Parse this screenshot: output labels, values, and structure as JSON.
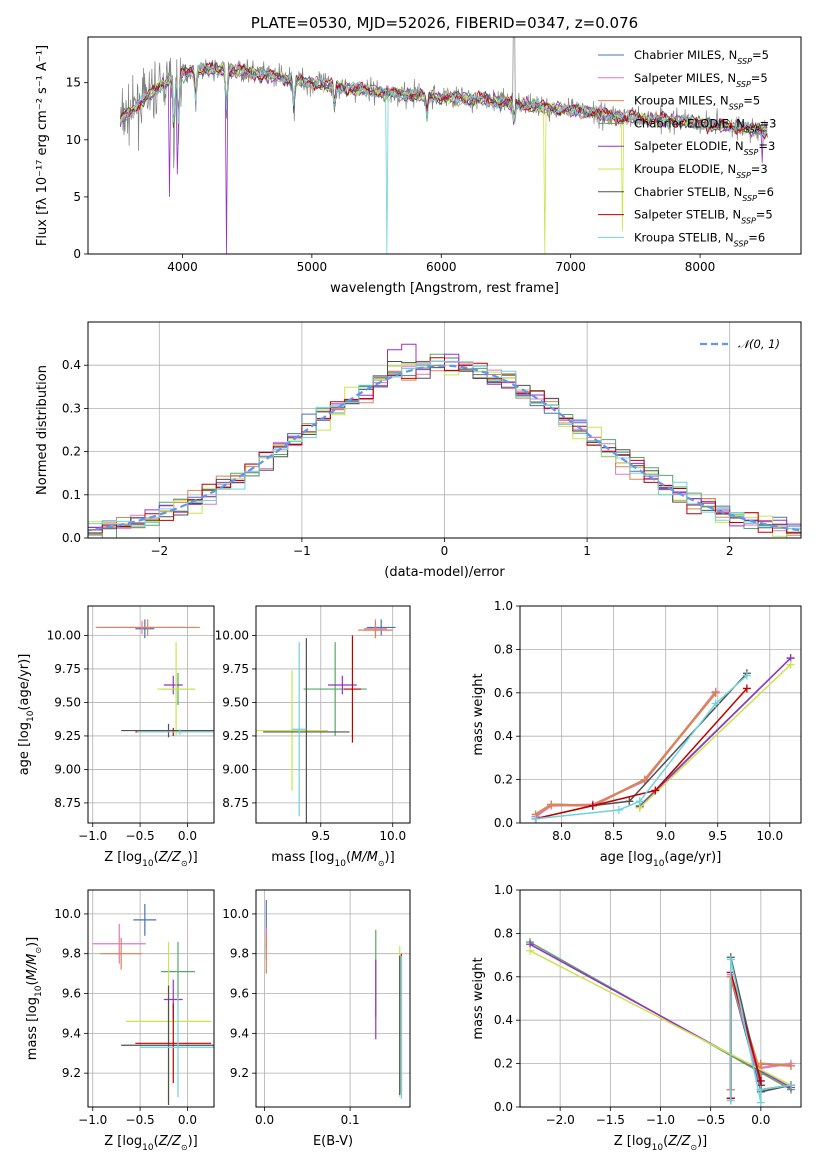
{
  "figure_title": "PLATE=0530, MJD=52026, FIBERID=0347, z=0.076",
  "model_names": [
    "Chabrier MILES",
    "Salpeter MILES",
    "Kroupa MILES",
    "Chabrier ELODIE",
    "Salpeter ELODIE",
    "Kroupa ELODIE",
    "Chabrier STELIB",
    "Salpeter STELIB",
    "Kroupa STELIB"
  ],
  "model_colors": [
    "#4c72b0",
    "#e377c2",
    "#dd8452",
    "#55a868",
    "#9b30c8",
    "#c8e64a",
    "#505050",
    "#c00000",
    "#6fd3dc"
  ],
  "chart_data": [
    {
      "id": "spectrum",
      "type": "line",
      "title": "PLATE=0530, MJD=52026, FIBERID=0347, z=0.076",
      "xlabel": "wavelength [Angstrom, rest frame]",
      "ylabel": "Flux [fλ 10⁻¹⁷ erg cm⁻² s⁻¹ A⁻¹]",
      "xlim": [
        3270,
        8780
      ],
      "ylim": [
        0,
        19
      ],
      "xticks": [
        4000,
        5000,
        6000,
        7000,
        8000
      ],
      "yticks": [
        0,
        5,
        10,
        15
      ],
      "grid": false,
      "legend": "top-right",
      "legend_entries": [
        "Chabrier MILES, N_SSP=5",
        "Salpeter MILES, N_SSP=5",
        "Kroupa MILES, N_SSP=5",
        "Chabrier ELODIE, N_SSP=3",
        "Salpeter ELODIE, N_SSP=3",
        "Kroupa ELODIE, N_SSP=3",
        "Chabrier STELIB, N_SSP=6",
        "Salpeter STELIB, N_SSP=5",
        "Kroupa STELIB, N_SSP=6"
      ],
      "data_color": "#808080",
      "continuum": {
        "x": [
          3500,
          3700,
          3900,
          4100,
          4400,
          4700,
          5000,
          5300,
          5600,
          5900,
          6200,
          6500,
          6800,
          7100,
          7400,
          7700,
          8000,
          8300,
          8500
        ],
        "y": [
          11.5,
          13.5,
          15.3,
          16.2,
          16.1,
          15.6,
          15.0,
          14.5,
          14.1,
          13.8,
          13.6,
          13.3,
          12.8,
          12.5,
          12.0,
          11.8,
          11.5,
          11.1,
          10.8
        ]
      }
    },
    {
      "id": "residuals",
      "type": "histogram",
      "xlabel": "(data-model)/error",
      "ylabel": "Normed distribution",
      "xlim": [
        -2.5,
        2.5
      ],
      "ylim": [
        0,
        0.5
      ],
      "xticks": [
        -2,
        -1,
        0,
        1,
        2
      ],
      "yticks": [
        0.0,
        0.1,
        0.2,
        0.3,
        0.4
      ],
      "grid": true,
      "legend": "top-right",
      "legend_entries": [
        "𝒩(0, 1)"
      ],
      "reference_curve": "gaussian mean 0 sigma 1"
    },
    {
      "id": "age_vs_Z",
      "type": "errorbar",
      "xlabel": "Z [log10(Z/Z⊙)]",
      "ylabel": "age  [log10(age/yr)]",
      "xlim": [
        -1.05,
        0.28
      ],
      "ylim": [
        8.6,
        10.22
      ],
      "xticks": [
        -1.0,
        -0.5,
        0.0
      ],
      "yticks": [
        8.75,
        9.0,
        9.25,
        9.5,
        9.75,
        10.0
      ],
      "grid": true,
      "series": [
        {
          "x": -0.45,
          "xerr": 0.1,
          "y": 10.05,
          "yerr": 0.07
        },
        {
          "x": -0.48,
          "xerr": 0.45,
          "y": 10.06,
          "yerr": 0.05
        },
        {
          "x": -0.42,
          "xerr": 0.55,
          "y": 10.06,
          "yerr": 0.06
        },
        {
          "x": -0.1,
          "xerr": 0.18,
          "y": 9.6,
          "yerr": 0.12
        },
        {
          "x": -0.15,
          "xerr": 0.1,
          "y": 9.63,
          "yerr": 0.07
        },
        {
          "x": -0.12,
          "xerr": 0.2,
          "y": 9.6,
          "yerr": 0.35
        },
        {
          "x": -0.2,
          "xerr": 0.5,
          "y": 9.29,
          "yerr": 0.05
        },
        {
          "x": -0.15,
          "xerr": 0.4,
          "y": 9.28,
          "yerr": 0.03
        },
        {
          "x": -0.08,
          "xerr": 0.45,
          "y": 9.28,
          "yerr": 0.02
        }
      ]
    },
    {
      "id": "age_vs_mass",
      "type": "errorbar",
      "xlabel": "mass [log10(M/M⊙)]",
      "ylabel": "",
      "xlim": [
        9.05,
        10.12
      ],
      "ylim": [
        8.6,
        10.22
      ],
      "xticks": [
        9.5,
        10.0
      ],
      "yticks": [
        8.75,
        9.0,
        9.25,
        9.5,
        9.75,
        10.0
      ],
      "grid": true,
      "series": [
        {
          "x": 9.92,
          "xerr": 0.1,
          "y": 10.06,
          "yerr": 0.06
        },
        {
          "x": 9.88,
          "xerr": 0.08,
          "y": 10.05,
          "yerr": 0.07
        },
        {
          "x": 9.88,
          "xerr": 0.12,
          "y": 10.04,
          "yerr": 0.06
        },
        {
          "x": 9.6,
          "xerr": 0.22,
          "y": 9.6,
          "yerr": 0.35
        },
        {
          "x": 9.65,
          "xerr": 0.1,
          "y": 9.63,
          "yerr": 0.07
        },
        {
          "x": 9.3,
          "xerr": 0.25,
          "y": 9.29,
          "yerr": 0.45
        },
        {
          "x": 9.4,
          "xerr": 0.3,
          "y": 9.28,
          "yerr": 0.7
        },
        {
          "x": 9.72,
          "xerr": 0.06,
          "y": 9.6,
          "yerr": 0.4
        },
        {
          "x": 9.35,
          "xerr": 0.05,
          "y": 9.3,
          "yerr": 0.65
        }
      ]
    },
    {
      "id": "weight_vs_age",
      "type": "line",
      "xlabel": "age  [log10(age/yr)]",
      "ylabel": "mass weight",
      "xlim": [
        7.6,
        10.3
      ],
      "ylim": [
        0,
        1.0
      ],
      "xticks": [
        8.0,
        8.5,
        9.0,
        9.5,
        10.0
      ],
      "yticks": [
        0.0,
        0.2,
        0.4,
        0.6,
        0.8,
        1.0
      ],
      "grid": true,
      "series": [
        {
          "x": [
            7.75,
            7.9,
            8.3,
            8.8,
            9.48
          ],
          "y": [
            0.03,
            0.085,
            0.08,
            0.2,
            0.6
          ]
        },
        {
          "x": [
            7.75,
            7.9,
            8.3,
            8.8,
            9.48
          ],
          "y": [
            0.03,
            0.08,
            0.085,
            0.195,
            0.605
          ]
        },
        {
          "x": [
            7.75,
            7.9,
            8.3,
            8.8,
            9.48
          ],
          "y": [
            0.04,
            0.085,
            0.08,
            0.2,
            0.6
          ]
        },
        {
          "x": [
            8.75,
            10.2
          ],
          "y": [
            0.08,
            0.76
          ]
        },
        {
          "x": [
            8.75,
            10.2
          ],
          "y": [
            0.075,
            0.76
          ]
        },
        {
          "x": [
            8.75,
            10.2
          ],
          "y": [
            0.07,
            0.73
          ]
        },
        {
          "x": [
            7.75,
            8.3,
            8.65,
            9.78
          ],
          "y": [
            0.02,
            0.08,
            0.1,
            0.69
          ]
        },
        {
          "x": [
            7.75,
            8.3,
            8.9,
            9.78
          ],
          "y": [
            0.02,
            0.08,
            0.15,
            0.62
          ]
        },
        {
          "x": [
            7.75,
            8.55,
            8.75,
            9.48,
            9.78
          ],
          "y": [
            0.02,
            0.06,
            0.1,
            0.55,
            0.68
          ]
        }
      ]
    },
    {
      "id": "mass_vs_Z",
      "type": "errorbar",
      "xlabel": "Z [log10(Z/Z⊙)]",
      "ylabel": "mass [log10(M/M⊙)]",
      "xlim": [
        -1.05,
        0.28
      ],
      "ylim": [
        9.03,
        10.12
      ],
      "xticks": [
        -1.0,
        -0.5,
        0.0
      ],
      "yticks": [
        9.2,
        9.4,
        9.6,
        9.8,
        10.0
      ],
      "grid": true,
      "series": [
        {
          "x": -0.45,
          "xerr": 0.12,
          "y": 9.97,
          "yerr": 0.08
        },
        {
          "x": -0.72,
          "xerr": 0.28,
          "y": 9.85,
          "yerr": 0.1
        },
        {
          "x": -0.7,
          "xerr": 0.22,
          "y": 9.8,
          "yerr": 0.08
        },
        {
          "x": -0.1,
          "xerr": 0.18,
          "y": 9.71,
          "yerr": 0.15
        },
        {
          "x": -0.15,
          "xerr": 0.1,
          "y": 9.57,
          "yerr": 0.1
        },
        {
          "x": -0.2,
          "xerr": 0.45,
          "y": 9.46,
          "yerr": 0.4
        },
        {
          "x": -0.2,
          "xerr": 0.5,
          "y": 9.34,
          "yerr": 0.3
        },
        {
          "x": -0.15,
          "xerr": 0.4,
          "y": 9.35,
          "yerr": 0.2
        },
        {
          "x": -0.1,
          "xerr": 0.4,
          "y": 9.33,
          "yerr": 0.25
        }
      ]
    },
    {
      "id": "mass_vs_ebv",
      "type": "errorbar",
      "xlabel": "E(B-V)",
      "ylabel": "",
      "xlim": [
        -0.01,
        0.17
      ],
      "ylim": [
        9.03,
        10.12
      ],
      "xticks": [
        0.0,
        0.1
      ],
      "yticks": [
        9.2,
        9.4,
        9.6,
        9.8,
        10.0
      ],
      "grid": true,
      "series": [
        {
          "x": 0.002,
          "xerr": 0,
          "y": 9.95,
          "yerr": 0.12
        },
        {
          "x": 0.002,
          "xerr": 0,
          "y": 9.85,
          "yerr": 0.08
        },
        {
          "x": 0.002,
          "xerr": 0,
          "y": 9.8,
          "yerr": 0.1
        },
        {
          "x": 0.13,
          "xerr": 0,
          "y": 9.7,
          "yerr": 0.22
        },
        {
          "x": 0.13,
          "xerr": 0,
          "y": 9.57,
          "yerr": 0.2
        },
        {
          "x": 0.158,
          "xerr": 0,
          "y": 9.46,
          "yerr": 0.38
        },
        {
          "x": 0.158,
          "xerr": 0,
          "y": 9.44,
          "yerr": 0.35
        },
        {
          "x": 0.16,
          "xerr": 0,
          "y": 9.45,
          "yerr": 0.35
        },
        {
          "x": 0.16,
          "xerr": 0,
          "y": 9.43,
          "yerr": 0.36
        }
      ]
    },
    {
      "id": "weight_vs_Z",
      "type": "line",
      "xlabel": "Z [log10(Z/Z⊙)]",
      "ylabel": "mass weight",
      "xlim": [
        -2.4,
        0.4
      ],
      "ylim": [
        0,
        1.0
      ],
      "xticks": [
        -2.0,
        -1.5,
        -1.0,
        -0.5,
        0.0
      ],
      "yticks": [
        0.0,
        0.2,
        0.4,
        0.6,
        0.8,
        1.0
      ],
      "grid": true,
      "series": [
        {
          "x": [
            -0.3,
            -0.3,
            0.0,
            0.0,
            0.3
          ],
          "y": [
            0.08,
            0.6,
            0.08,
            0.2,
            0.19
          ]
        },
        {
          "x": [
            -0.3,
            -0.3,
            0.0,
            0.0,
            0.3
          ],
          "y": [
            0.03,
            0.61,
            0.1,
            0.18,
            0.2
          ]
        },
        {
          "x": [
            -0.3,
            -0.3,
            0.0,
            0.0,
            0.3
          ],
          "y": [
            0.08,
            0.6,
            0.15,
            0.2,
            0.19
          ]
        },
        {
          "x": [
            -2.3,
            0.3
          ],
          "y": [
            0.76,
            0.08
          ]
        },
        {
          "x": [
            -2.3,
            0.3
          ],
          "y": [
            0.75,
            0.09
          ]
        },
        {
          "x": [
            -2.3,
            0.3
          ],
          "y": [
            0.72,
            0.1
          ]
        },
        {
          "x": [
            -0.3,
            -0.3,
            0.0,
            0.0,
            0.3
          ],
          "y": [
            0.04,
            0.69,
            0.1,
            0.07,
            0.1
          ]
        },
        {
          "x": [
            -0.3,
            -0.3,
            0.0,
            0.0,
            0.3
          ],
          "y": [
            0.04,
            0.62,
            0.12,
            0.08,
            0.1
          ]
        },
        {
          "x": [
            -0.3,
            -0.3,
            0.0,
            0.0,
            0.3
          ],
          "y": [
            0.03,
            0.68,
            0.02,
            0.08,
            0.1
          ]
        }
      ]
    }
  ]
}
